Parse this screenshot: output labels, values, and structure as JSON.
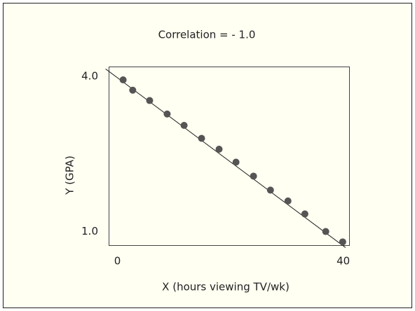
{
  "chart_data": {
    "type": "scatter",
    "title": "Correlation = - 1.0",
    "xlabel": "X (hours viewing TV/wk)",
    "ylabel": "Y (GPA)",
    "x": [
      1.0,
      2.7,
      5.7,
      8.8,
      11.8,
      14.9,
      18.0,
      21.0,
      24.1,
      27.1,
      30.2,
      33.2,
      36.9,
      39.9
    ],
    "values": [
      3.93,
      3.73,
      3.53,
      3.27,
      3.05,
      2.8,
      2.59,
      2.34,
      2.07,
      1.8,
      1.59,
      1.34,
      1.0,
      0.8
    ],
    "color": "#555555",
    "trend_line": {
      "x": [
        -2.1,
        40.4
      ],
      "y": [
        4.14,
        0.69
      ],
      "color": "#222222"
    },
    "xlim": [
      -1.5,
      41.1
    ],
    "ylim": [
      0.73,
      4.18
    ],
    "xticks": [
      0,
      40
    ],
    "yticks": [
      {
        "value": 4,
        "label": "4.0"
      },
      {
        "value": 1,
        "label": "1.0"
      }
    ]
  }
}
